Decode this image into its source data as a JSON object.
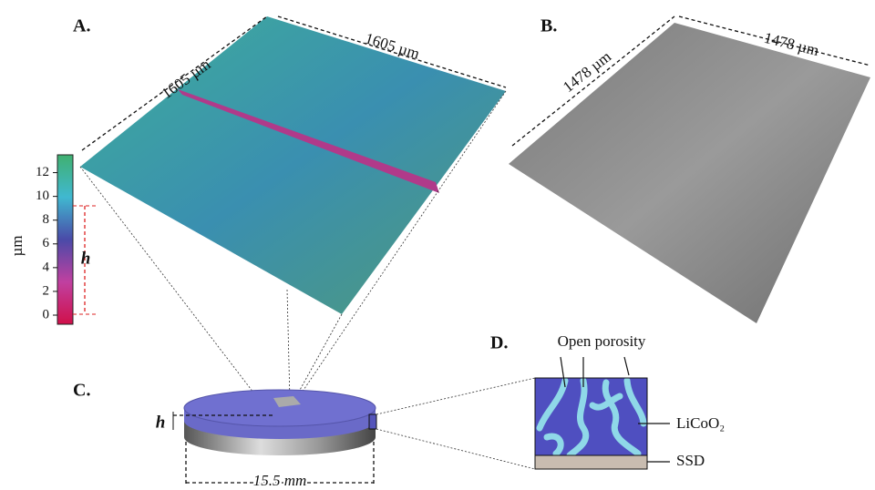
{
  "panels": {
    "a": {
      "label": "A.",
      "dim_left": "1605 µm",
      "dim_right": "1605 µm",
      "colorbar": {
        "unit": "µm",
        "lim": [
          0,
          13.5
        ],
        "ticks": [
          0,
          2,
          4,
          6,
          8,
          10,
          12
        ],
        "height_label": "h"
      }
    },
    "b": {
      "label": "B.",
      "dim_left": "1478 µm",
      "dim_right": "1478 µm"
    },
    "c": {
      "label": "C.",
      "height_label": "h",
      "diameter": "15.5 mm"
    },
    "d": {
      "label": "D.",
      "porosity": "Open porosity",
      "cathode": "LiCoO₂",
      "separator": "SSD"
    }
  }
}
